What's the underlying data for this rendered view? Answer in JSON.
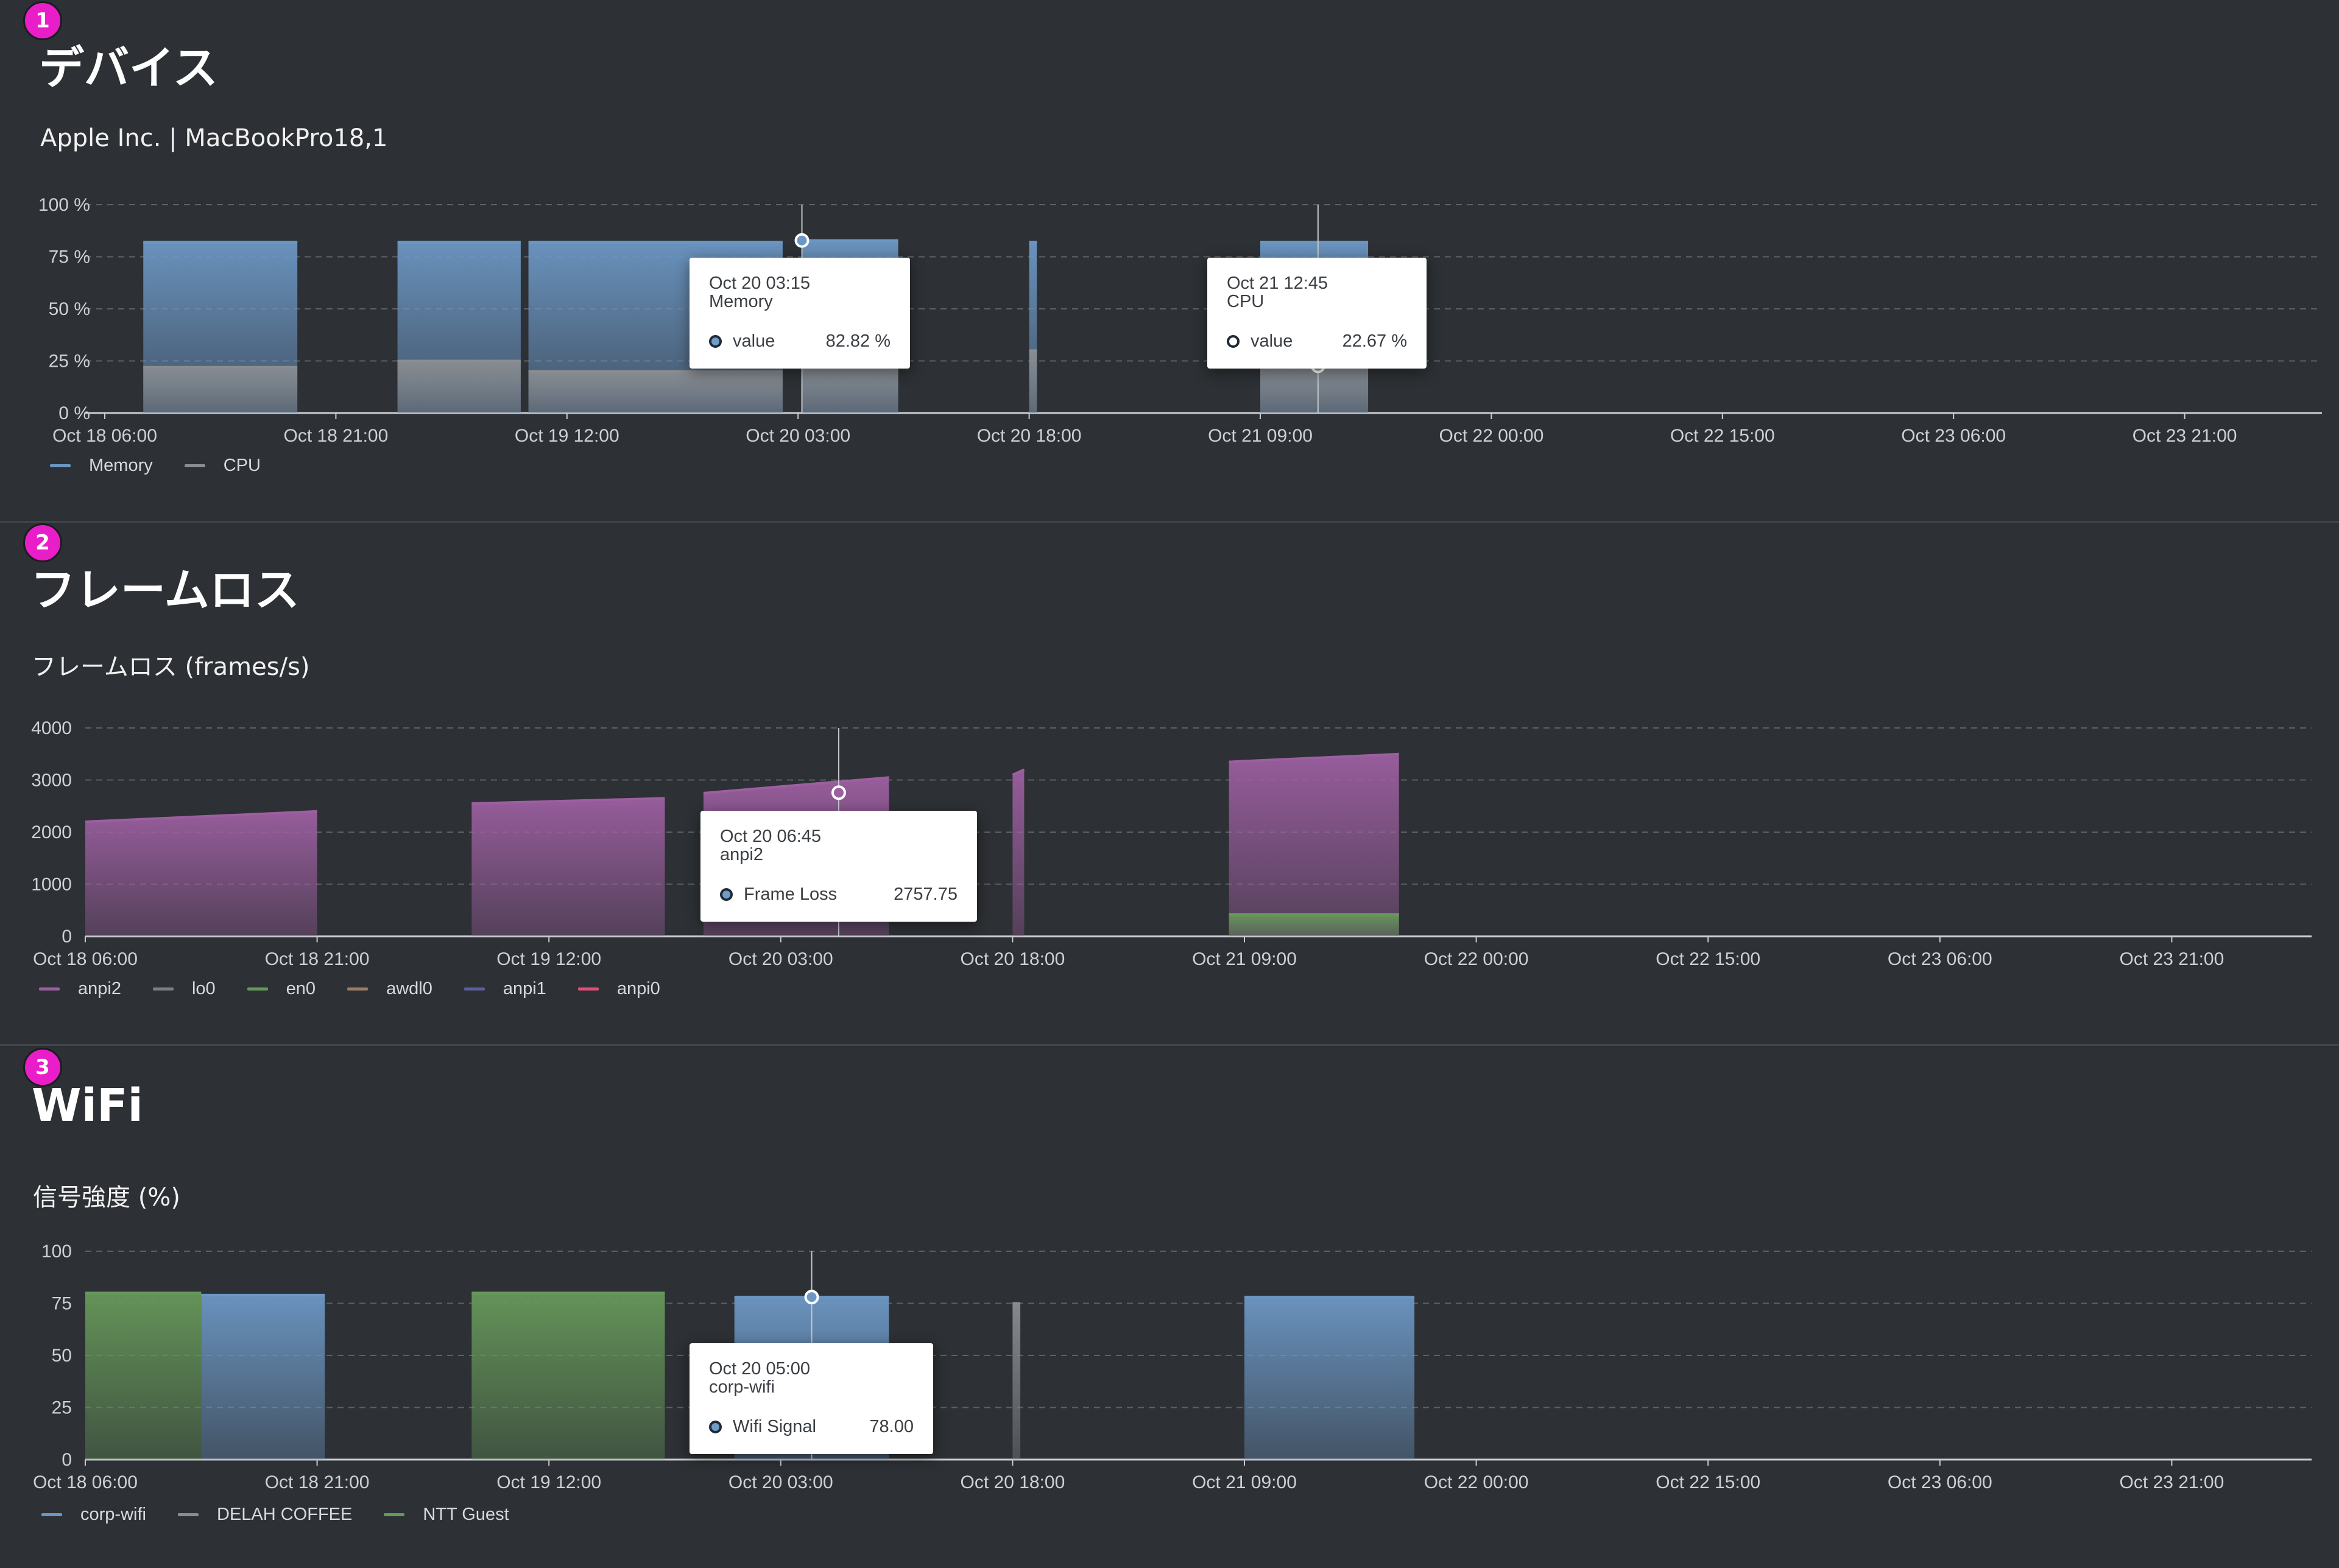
{
  "badges": [
    "1",
    "2",
    "3"
  ],
  "sections": {
    "device": {
      "title": "デバイス",
      "subtitle": "Apple Inc. | MacBookPro18,1",
      "tooltips": [
        {
          "time": "Oct 20 03:15",
          "series": "Memory",
          "label": "value",
          "value": "82.82 %"
        },
        {
          "time": "Oct 21 12:45",
          "series": "CPU",
          "label": "value",
          "value": "22.67 %"
        }
      ]
    },
    "frameloss": {
      "title": "フレームロス",
      "subtitle": "フレームロス (frames/s)",
      "tooltips": [
        {
          "time": "Oct 20 06:45",
          "series": "anpi2",
          "label": "Frame Loss",
          "value": "2757.75"
        }
      ]
    },
    "wifi": {
      "title": "WiFi",
      "subtitle": "信号強度 (%)",
      "tooltips": [
        {
          "time": "Oct 20 05:00",
          "series": "corp-wifi",
          "label": "Wifi Signal",
          "value": "78.00"
        }
      ]
    }
  },
  "chart_data": [
    {
      "type": "area",
      "x_ticks": [
        "Oct 18 06:00",
        "Oct 18 21:00",
        "Oct 19 12:00",
        "Oct 20 03:00",
        "Oct 20 18:00",
        "Oct 21 09:00",
        "Oct 22 00:00",
        "Oct 22 15:00",
        "Oct 23 06:00",
        "Oct 23 21:00"
      ],
      "y_ticks": [
        "0 %",
        "25 %",
        "50 %",
        "75 %",
        "100 %"
      ],
      "ylim": [
        0,
        100
      ],
      "x_range": [
        "Oct 18 06:00",
        "Oct 24 06:00"
      ],
      "grid": true,
      "legend_position": "bottom-left",
      "series": [
        {
          "name": "Memory",
          "color": "#6c97c4",
          "segments": [
            {
              "start": "Oct 18 08:30",
              "end": "Oct 18 18:30",
              "value": 82
            },
            {
              "start": "Oct 19 01:00",
              "end": "Oct 19 09:00",
              "value": 82
            },
            {
              "start": "Oct 19 09:30",
              "end": "Oct 20 02:00",
              "value": 82
            },
            {
              "start": "Oct 20 03:15",
              "end": "Oct 20 09:30",
              "value": 82.82
            },
            {
              "start": "Oct 20 18:00",
              "end": "Oct 20 18:30",
              "value": 82
            },
            {
              "start": "Oct 21 09:00",
              "end": "Oct 21 16:00",
              "value": 82
            }
          ]
        },
        {
          "name": "CPU",
          "color": "#8a8d91",
          "segments": [
            {
              "start": "Oct 18 08:30",
              "end": "Oct 18 18:30",
              "value": 22
            },
            {
              "start": "Oct 19 01:00",
              "end": "Oct 19 09:00",
              "value": 25
            },
            {
              "start": "Oct 19 09:30",
              "end": "Oct 20 02:00",
              "value": 20
            },
            {
              "start": "Oct 20 03:15",
              "end": "Oct 20 09:30",
              "value": 22
            },
            {
              "start": "Oct 20 18:00",
              "end": "Oct 20 18:30",
              "value": 30
            },
            {
              "start": "Oct 21 09:00",
              "end": "Oct 21 16:00",
              "value": 22.67
            }
          ]
        }
      ]
    },
    {
      "type": "area",
      "x_ticks": [
        "Oct 18 06:00",
        "Oct 18 21:00",
        "Oct 19 12:00",
        "Oct 20 03:00",
        "Oct 20 18:00",
        "Oct 21 09:00",
        "Oct 22 00:00",
        "Oct 22 15:00",
        "Oct 23 06:00",
        "Oct 23 21:00"
      ],
      "y_ticks": [
        "0",
        "1000",
        "2000",
        "3000",
        "4000"
      ],
      "ylim": [
        0,
        4000
      ],
      "x_range": [
        "Oct 18 06:00",
        "Oct 24 06:00"
      ],
      "grid": true,
      "legend_position": "bottom-left",
      "series": [
        {
          "name": "anpi2",
          "color": "#9c5fa0",
          "segments": [
            {
              "start": "Oct 18 06:00",
              "end": "Oct 18 21:00",
              "from": 2200,
              "to": 2400
            },
            {
              "start": "Oct 19 07:00",
              "end": "Oct 19 19:30",
              "from": 2550,
              "to": 2650
            },
            {
              "start": "Oct 19 22:00",
              "end": "Oct 20 10:00",
              "from": 2750,
              "to": 3050
            },
            {
              "start": "Oct 20 18:00",
              "end": "Oct 20 18:45",
              "from": 3100,
              "to": 3200
            },
            {
              "start": "Oct 21 08:00",
              "end": "Oct 21 19:00",
              "from": 3350,
              "to": 3500
            }
          ]
        },
        {
          "name": "lo0",
          "color": "#7a7f85",
          "segments": []
        },
        {
          "name": "en0",
          "color": "#66985a",
          "segments": [
            {
              "start": "Oct 21 08:00",
              "end": "Oct 21 19:00",
              "from": 420,
              "to": 420
            }
          ]
        },
        {
          "name": "awdl0",
          "color": "#9a7d62",
          "segments": []
        },
        {
          "name": "anpi1",
          "color": "#5b5d9e",
          "segments": []
        },
        {
          "name": "anpi0",
          "color": "#e04f7a",
          "segments": []
        }
      ]
    },
    {
      "type": "area",
      "x_ticks": [
        "Oct 18 06:00",
        "Oct 18 21:00",
        "Oct 19 12:00",
        "Oct 20 03:00",
        "Oct 20 18:00",
        "Oct 21 09:00",
        "Oct 22 00:00",
        "Oct 22 15:00",
        "Oct 23 06:00",
        "Oct 23 21:00"
      ],
      "y_ticks": [
        "0",
        "25",
        "50",
        "75",
        "100"
      ],
      "ylim": [
        0,
        100
      ],
      "x_range": [
        "Oct 18 06:00",
        "Oct 24 06:00"
      ],
      "grid": true,
      "legend_position": "bottom-left",
      "series": [
        {
          "name": "corp-wifi",
          "color": "#6c97c4",
          "segments": [
            {
              "start": "Oct 18 13:30",
              "end": "Oct 18 21:30",
              "value": 79
            },
            {
              "start": "Oct 20 00:00",
              "end": "Oct 20 10:00",
              "value": 78
            },
            {
              "start": "Oct 21 09:00",
              "end": "Oct 21 20:00",
              "value": 78
            }
          ]
        },
        {
          "name": "DELAH COFFEE",
          "color": "#8a8d91",
          "segments": [
            {
              "start": "Oct 20 18:00",
              "end": "Oct 20 18:30",
              "value": 75
            }
          ]
        },
        {
          "name": "NTT Guest",
          "color": "#66985a",
          "segments": [
            {
              "start": "Oct 18 06:00",
              "end": "Oct 18 13:30",
              "value": 80
            },
            {
              "start": "Oct 19 07:00",
              "end": "Oct 19 19:30",
              "value": 80
            }
          ]
        }
      ]
    }
  ]
}
